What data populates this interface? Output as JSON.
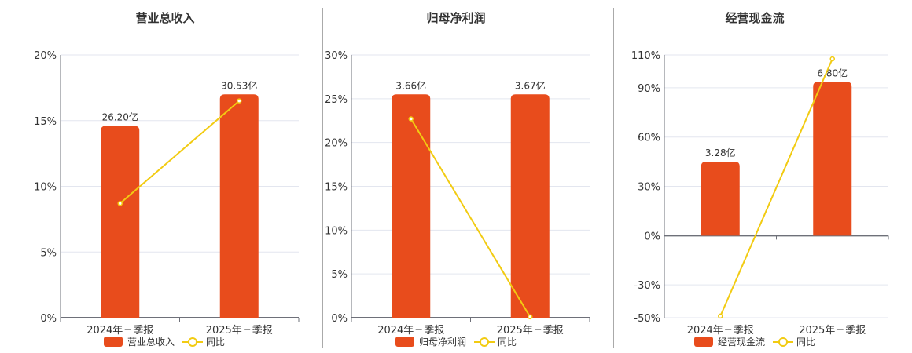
{
  "colors": {
    "bar": "#E84C1C",
    "line": "#F2CB12",
    "grid": "#E3E6EF",
    "axis": "#6E7079",
    "separator": "#AAAAAA"
  },
  "legend_line_label": "同比",
  "chart_data": [
    {
      "type": "bar+line",
      "title": "营业总收入",
      "categories": [
        "2024年三季报",
        "2025年三季报"
      ],
      "series": [
        {
          "name": "营业总收入",
          "type": "bar",
          "labels": [
            "26.20亿",
            "30.53亿"
          ],
          "values_pct_axis": [
            14.6,
            17.0
          ]
        },
        {
          "name": "同比",
          "type": "line",
          "values": [
            8.7,
            16.5
          ]
        }
      ],
      "yticks": [
        "0%",
        "5%",
        "10%",
        "15%",
        "20%"
      ],
      "ylim": [
        0,
        20
      ]
    },
    {
      "type": "bar+line",
      "title": "归母净利润",
      "categories": [
        "2024年三季报",
        "2025年三季报"
      ],
      "series": [
        {
          "name": "归母净利润",
          "type": "bar",
          "labels": [
            "3.66亿",
            "3.67亿"
          ],
          "values_pct_axis": [
            25.5,
            25.5
          ]
        },
        {
          "name": "同比",
          "type": "line",
          "values": [
            22.7,
            0.1
          ]
        }
      ],
      "yticks": [
        "0%",
        "5%",
        "10%",
        "15%",
        "20%",
        "25%",
        "30%"
      ],
      "ylim": [
        0,
        30
      ]
    },
    {
      "type": "bar+line",
      "title": "经营现金流",
      "categories": [
        "2024年三季报",
        "2025年三季报"
      ],
      "series": [
        {
          "name": "经营现金流",
          "type": "bar",
          "labels": [
            "3.28亿",
            "6.80亿"
          ],
          "values_pct_axis": [
            45,
            93.6
          ]
        },
        {
          "name": "同比",
          "type": "line",
          "values": [
            -49,
            107.6
          ]
        }
      ],
      "yticks": [
        "-50%",
        "-30%",
        "0%",
        "30%",
        "60%",
        "90%",
        "110%"
      ],
      "ytick_values": [
        -50,
        -30,
        0,
        30,
        60,
        90,
        110
      ],
      "ylim": [
        -50,
        110
      ]
    }
  ]
}
